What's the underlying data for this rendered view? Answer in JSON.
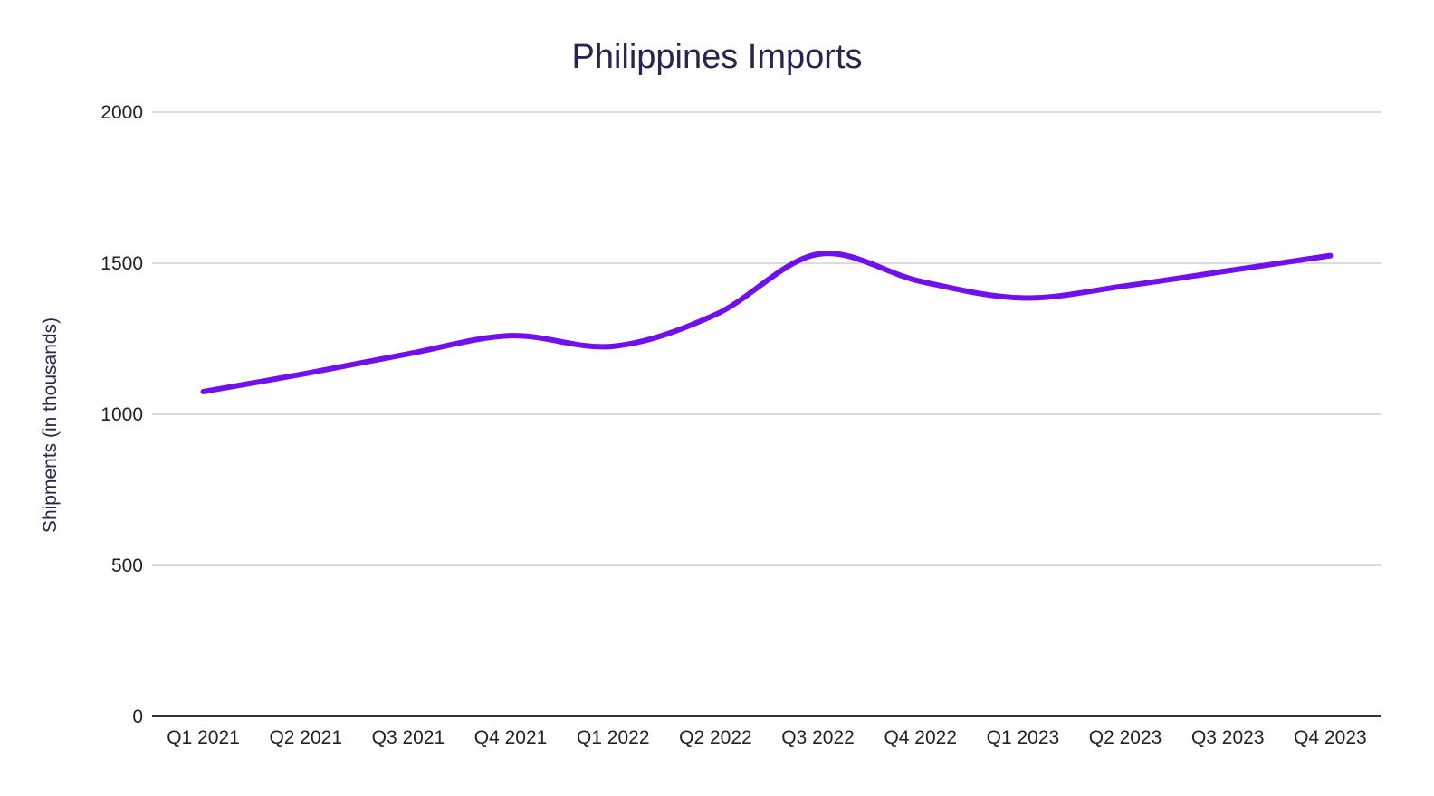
{
  "chart_data": {
    "type": "line",
    "title": "Philippines Imports",
    "xlabel": "",
    "ylabel": "Shipments (in thousands)",
    "categories": [
      "Q1 2021",
      "Q2 2021",
      "Q3 2021",
      "Q4 2021",
      "Q1 2022",
      "Q2 2022",
      "Q3 2022",
      "Q4 2022",
      "Q1 2023",
      "Q2 2023",
      "Q3 2023",
      "Q4 2023"
    ],
    "series": [
      {
        "values": [
          1075,
          1135,
          1200,
          1260,
          1225,
          1330,
          1530,
          1440,
          1385,
          1425,
          1475,
          1525
        ],
        "color": "#7010ee"
      }
    ],
    "ylim": [
      0,
      2000
    ],
    "yticks": [
      0,
      500,
      1000,
      1500,
      2000
    ],
    "grid": true,
    "legend": "none"
  }
}
